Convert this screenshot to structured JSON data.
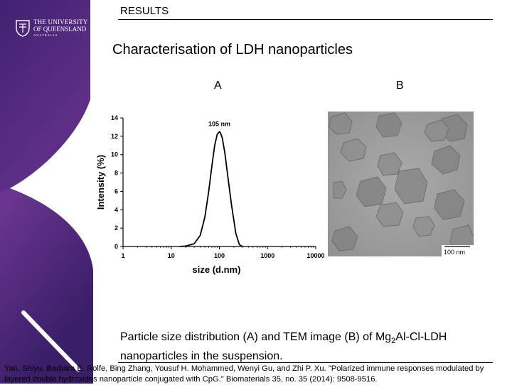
{
  "header": {
    "logo_line1": "THE UNIVERSITY",
    "logo_line2": "OF QUEENSLAND",
    "logo_line3": "AUSTRALIA",
    "section": "RESULTS"
  },
  "slide": {
    "title": "Characterisation of LDH nanoparticles",
    "label_a": "A",
    "label_b": "B",
    "caption_part1": "Particle size distribution (A) and TEM image (B) of Mg",
    "caption_sub": "2",
    "caption_part2": "Al-Cl-LDH nanoparticles in the suspension.",
    "citation": "Yan, Shiyu, Barbara E. Rolfe, Bing Zhang, Yousuf H. Mohammed, Wenyi Gu, and Zhi P. Xu. \"Polarized immune responses modulated by layered double hydroxides nanoparticle conjugated with CpG.\" Biomaterials 35, no. 35 (2014): 9508-9516."
  },
  "tem_image": {
    "scale_bar_label": "100 nm"
  },
  "colors": {
    "sidebar_purple": "#5b2d86",
    "sidebar_deep": "#3d1f6b",
    "text": "#000000"
  },
  "chart_data": {
    "type": "line",
    "xlabel": "size (d.nm)",
    "ylabel": "Intensity (%)",
    "x_scale": "log",
    "xlim": [
      1,
      10000
    ],
    "ylim": [
      0,
      14
    ],
    "x_ticks": [
      "1",
      "10",
      "100",
      "1000",
      "10000"
    ],
    "y_ticks": [
      "0",
      "2",
      "4",
      "6",
      "8",
      "10",
      "12",
      "14"
    ],
    "annotation": "105 nm",
    "grid": false,
    "series": [
      {
        "x": [
          15,
          20,
          30,
          40,
          50,
          60,
          70,
          80,
          90,
          100,
          105,
          115,
          130,
          150,
          180,
          220,
          260,
          300
        ],
        "y": [
          0,
          0.05,
          0.3,
          1.2,
          3.2,
          6.0,
          8.8,
          11.0,
          12.2,
          12.5,
          12.4,
          11.8,
          10.2,
          7.6,
          4.4,
          1.4,
          0.2,
          0
        ]
      }
    ]
  }
}
